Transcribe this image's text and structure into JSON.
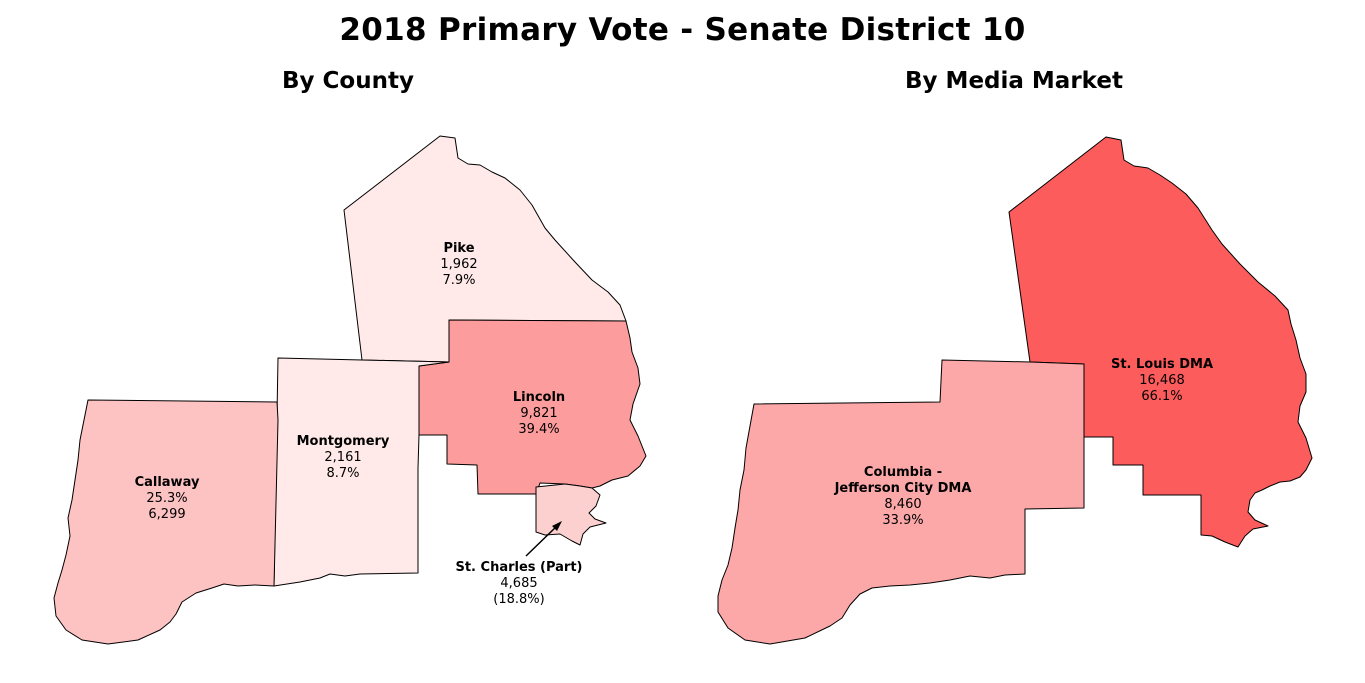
{
  "title": "2018 Primary Vote - Senate District 10",
  "left_panel": {
    "subtitle": "By County",
    "counties": [
      {
        "name": "Pike",
        "line1": "1,962",
        "line2": "7.9%",
        "color": "#ffe9e9"
      },
      {
        "name": "Lincoln",
        "line1": "9,821",
        "line2": "39.4%",
        "color": "#fc9c9c"
      },
      {
        "name": "Montgomery",
        "line1": "2,161",
        "line2": "8.7%",
        "color": "#ffe9e9"
      },
      {
        "name": "Callaway",
        "line1": "25.3%",
        "line2": "6,299",
        "color": "#fdc2c2"
      },
      {
        "name": "St. Charles (Part)",
        "line1": "4,685",
        "line2": "(18.8%)",
        "color": "#fdd0d0"
      }
    ]
  },
  "right_panel": {
    "subtitle": "By Media Market",
    "markets": [
      {
        "name": "St. Louis DMA",
        "line1": "16,468",
        "line2": "66.1%",
        "color": "#fd5c5c"
      },
      {
        "name_line1": "Columbia -",
        "name_line2": "Jefferson City DMA",
        "line1": "8,460",
        "line2": "33.9%",
        "color": "#fca8a8"
      }
    ]
  }
}
